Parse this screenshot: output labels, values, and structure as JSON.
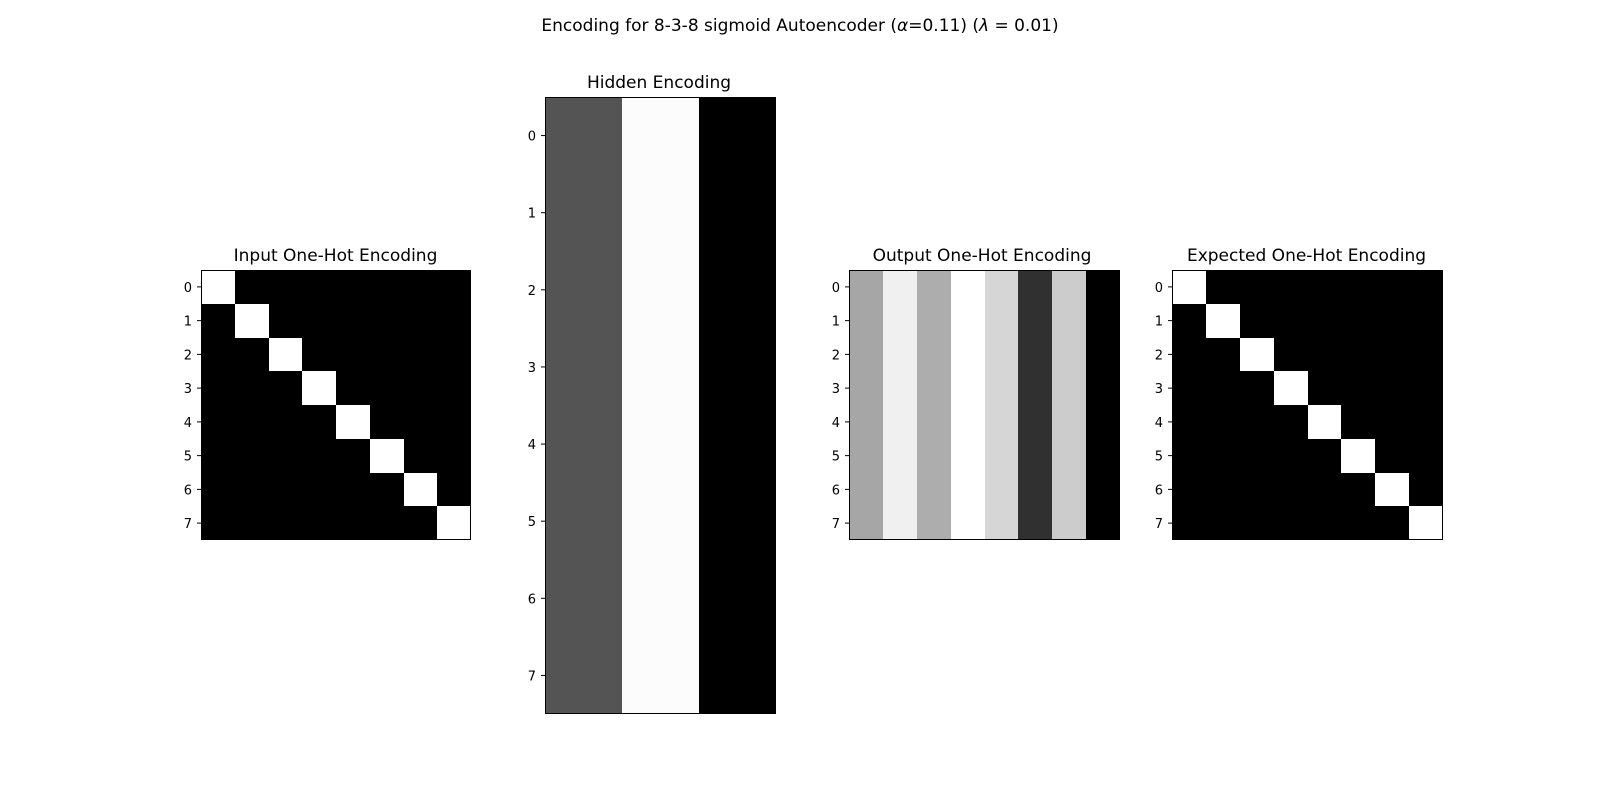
{
  "figure": {
    "title_prefix": "Encoding for 8-3-8 sigmoid Autoencoder (",
    "title_alpha_symbol": "α",
    "title_alpha_value": "=0.11) (",
    "title_lambda_symbol": "λ",
    "title_lambda_value": " = 0.01)",
    "colormap": "gray",
    "colors": {
      "low": "#000000",
      "high": "#ffffff",
      "frame": "#000000",
      "background": "#ffffff"
    }
  },
  "chart_data": [
    {
      "type": "heatmap",
      "id": "input",
      "title": "Input One-Hot Encoding",
      "y_ticks": [
        "0",
        "1",
        "2",
        "3",
        "4",
        "5",
        "6",
        "7"
      ],
      "x_ticks": [],
      "grid": false,
      "vmin": 0,
      "vmax": 1,
      "values": [
        [
          1,
          0,
          0,
          0,
          0,
          0,
          0,
          0
        ],
        [
          0,
          1,
          0,
          0,
          0,
          0,
          0,
          0
        ],
        [
          0,
          0,
          1,
          0,
          0,
          0,
          0,
          0
        ],
        [
          0,
          0,
          0,
          1,
          0,
          0,
          0,
          0
        ],
        [
          0,
          0,
          0,
          0,
          1,
          0,
          0,
          0
        ],
        [
          0,
          0,
          0,
          0,
          0,
          1,
          0,
          0
        ],
        [
          0,
          0,
          0,
          0,
          0,
          0,
          1,
          0
        ],
        [
          0,
          0,
          0,
          0,
          0,
          0,
          0,
          1
        ]
      ]
    },
    {
      "type": "heatmap",
      "id": "hidden",
      "title": "Hidden Encoding",
      "y_ticks": [
        "0",
        "1",
        "2",
        "3",
        "4",
        "5",
        "6",
        "7"
      ],
      "x_ticks": [],
      "grid": false,
      "vmin": 0,
      "vmax": 1,
      "values": [
        [
          0.33,
          0.99,
          0.0
        ],
        [
          0.33,
          0.99,
          0.0
        ],
        [
          0.33,
          0.99,
          0.0
        ],
        [
          0.33,
          0.99,
          0.0
        ],
        [
          0.33,
          0.99,
          0.0
        ],
        [
          0.33,
          0.99,
          0.0
        ],
        [
          0.33,
          0.99,
          0.0
        ],
        [
          0.33,
          0.99,
          0.0
        ]
      ]
    },
    {
      "type": "heatmap",
      "id": "output",
      "title": "Output One-Hot Encoding",
      "y_ticks": [
        "0",
        "1",
        "2",
        "3",
        "4",
        "5",
        "6",
        "7"
      ],
      "x_ticks": [],
      "grid": false,
      "vmin": 0,
      "vmax": 1,
      "values": [
        [
          0.65,
          0.94,
          0.68,
          1.0,
          0.84,
          0.19,
          0.8,
          0.0
        ],
        [
          0.65,
          0.94,
          0.68,
          1.0,
          0.84,
          0.19,
          0.8,
          0.0
        ],
        [
          0.65,
          0.94,
          0.68,
          1.0,
          0.84,
          0.19,
          0.8,
          0.0
        ],
        [
          0.65,
          0.94,
          0.68,
          1.0,
          0.84,
          0.19,
          0.8,
          0.0
        ],
        [
          0.65,
          0.94,
          0.68,
          1.0,
          0.84,
          0.19,
          0.8,
          0.0
        ],
        [
          0.65,
          0.94,
          0.68,
          1.0,
          0.84,
          0.19,
          0.8,
          0.0
        ],
        [
          0.65,
          0.94,
          0.68,
          1.0,
          0.84,
          0.19,
          0.8,
          0.0
        ],
        [
          0.65,
          0.94,
          0.68,
          1.0,
          0.84,
          0.19,
          0.8,
          0.0
        ]
      ]
    },
    {
      "type": "heatmap",
      "id": "expected",
      "title": "Expected One-Hot Encoding",
      "y_ticks": [
        "0",
        "1",
        "2",
        "3",
        "4",
        "5",
        "6",
        "7"
      ],
      "x_ticks": [],
      "grid": false,
      "vmin": 0,
      "vmax": 1,
      "values": [
        [
          1,
          0,
          0,
          0,
          0,
          0,
          0,
          0
        ],
        [
          0,
          1,
          0,
          0,
          0,
          0,
          0,
          0
        ],
        [
          0,
          0,
          1,
          0,
          0,
          0,
          0,
          0
        ],
        [
          0,
          0,
          0,
          1,
          0,
          0,
          0,
          0
        ],
        [
          0,
          0,
          0,
          0,
          1,
          0,
          0,
          0
        ],
        [
          0,
          0,
          0,
          0,
          0,
          1,
          0,
          0
        ],
        [
          0,
          0,
          0,
          0,
          0,
          0,
          1,
          0
        ],
        [
          0,
          0,
          0,
          0,
          0,
          0,
          0,
          1
        ]
      ]
    }
  ]
}
